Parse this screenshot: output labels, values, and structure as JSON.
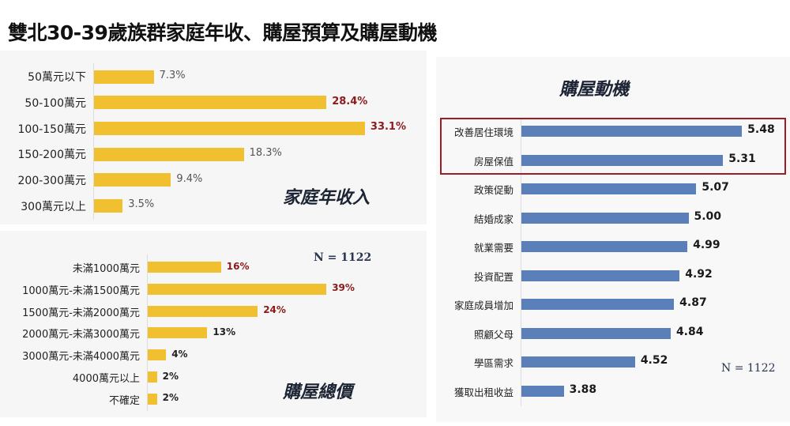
{
  "title": "雙北30-39歲族群家庭年收、購屋預算及購屋動機",
  "chart_data": [
    {
      "type": "bar",
      "orientation": "horizontal",
      "title": "家庭年收入",
      "unit": "%",
      "categories": [
        "50萬元以下",
        "50-100萬元",
        "100-150萬元",
        "150-200萬元",
        "200-300萬元",
        "300萬元以上"
      ],
      "values": [
        7.3,
        28.4,
        33.1,
        18.3,
        9.4,
        3.5
      ],
      "labels": [
        "7.3%",
        "28.4%",
        "33.1%",
        "18.3%",
        "9.4%",
        "3.5%"
      ],
      "highlight": [
        false,
        true,
        true,
        false,
        false,
        false
      ],
      "bar_color": "#f0c030",
      "xlim": [
        0,
        35
      ]
    },
    {
      "type": "bar",
      "orientation": "horizontal",
      "title": "購屋總價",
      "unit": "%",
      "annotation": "N = 1122",
      "categories": [
        "未滿1000萬元",
        "1000萬元-未滿1500萬元",
        "1500萬元-未滿2000萬元",
        "2000萬元-未滿3000萬元",
        "3000萬元-未滿4000萬元",
        "4000萬元以上",
        "不確定"
      ],
      "values": [
        16,
        39,
        24,
        13,
        4,
        2,
        2
      ],
      "labels": [
        "16%",
        "39%",
        "24%",
        "13%",
        "4%",
        "2%",
        "2%"
      ],
      "highlight": [
        true,
        true,
        true,
        false,
        false,
        false,
        false
      ],
      "bar_color": "#f0c030",
      "xlim": [
        0,
        45
      ]
    },
    {
      "type": "bar",
      "orientation": "horizontal",
      "title": "購屋動機",
      "annotation": "N = 1122",
      "categories": [
        "改善居住環境",
        "房屋保值",
        "政策促動",
        "結婚成家",
        "就業需要",
        "投資配置",
        "家庭成員增加",
        "照顧父母",
        "學區需求",
        "獲取出租收益"
      ],
      "values": [
        5.48,
        5.31,
        5.07,
        5.0,
        4.99,
        4.92,
        4.87,
        4.84,
        4.52,
        3.88
      ],
      "labels": [
        "5.48",
        "5.31",
        "5.07",
        "5.00",
        "4.99",
        "4.92",
        "4.87",
        "4.84",
        "4.52",
        "3.88"
      ],
      "boxed": [
        true,
        true,
        false,
        false,
        false,
        false,
        false,
        false,
        false,
        false
      ],
      "bar_color": "#5b7fb8",
      "xlim": [
        3.5,
        5.6
      ]
    }
  ]
}
